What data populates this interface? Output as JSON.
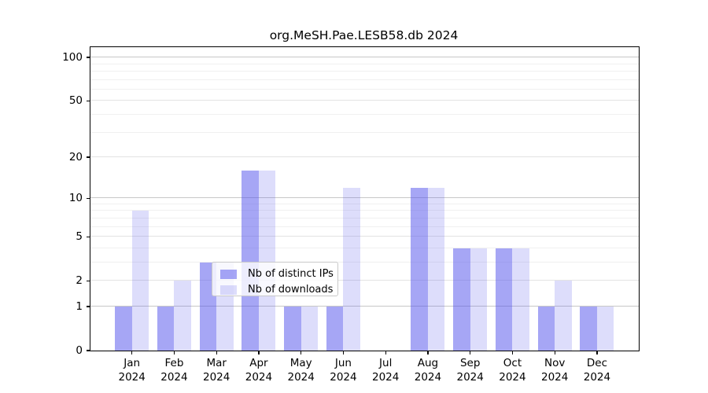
{
  "page": {
    "background": "#ffffff"
  },
  "chart_data": {
    "type": "bar",
    "title": "org.MeSH.Pae.LESB58.db 2024",
    "categories": [
      "Jan",
      "Feb",
      "Mar",
      "Apr",
      "May",
      "Jun",
      "Jul",
      "Aug",
      "Sep",
      "Oct",
      "Nov",
      "Dec"
    ],
    "x_tick_second_line": "2024",
    "series": [
      {
        "name": "Nb of distinct IPs",
        "color_hex": "#a5a5f2",
        "css_color": "rgba(85,85,235,0.52)",
        "values": [
          1,
          1,
          3,
          16,
          1,
          1,
          0,
          12,
          4,
          4,
          1,
          1
        ]
      },
      {
        "name": "Nb of downloads",
        "color_hex": "#dcdcf9",
        "css_color": "rgba(85,85,235,0.20)",
        "values": [
          8,
          2,
          3,
          16,
          1,
          12,
          0,
          12,
          4,
          4,
          2,
          1
        ]
      }
    ],
    "y_axis": {
      "scale": "log1p",
      "tick_values": [
        0,
        1,
        2,
        5,
        10,
        20,
        50,
        100
      ],
      "decade_values": [
        1,
        10,
        100
      ],
      "minor_grid_values": [
        3,
        4,
        6,
        7,
        8,
        9,
        30,
        40,
        60,
        70,
        80,
        90
      ],
      "ylim": [
        0,
        116
      ]
    },
    "grid": {
      "decade_color": "#c7c7c7",
      "labeled_color": "#e3e3e3",
      "minor_color": "#f0f0f0"
    },
    "legend": {
      "position": "inside-bottom-center",
      "entries": [
        "Nb of distinct IPs",
        "Nb of downloads"
      ]
    }
  }
}
